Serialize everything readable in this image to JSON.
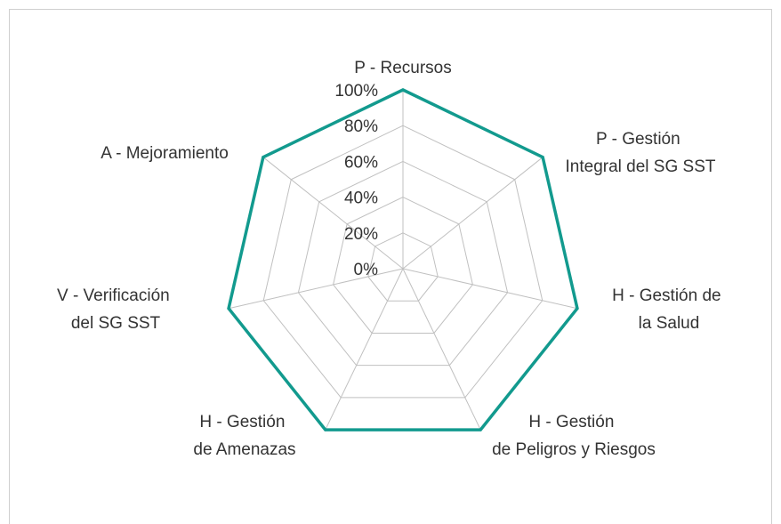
{
  "chart_data": {
    "type": "radar",
    "categories": [
      "P - Recursos",
      "P - Gestión Integral del SG SST",
      "H - Gestión de la Salud",
      "H - Gestión de Peligros y Riesgos",
      "H - Gestión de Amenazas",
      "V - Verificación del SG SST",
      "A - Mejoramiento"
    ],
    "values": [
      100,
      100,
      100,
      100,
      100,
      100,
      100
    ],
    "color": "#129a8e",
    "ylim": [
      0,
      100
    ],
    "yticks": [
      {
        "value": 0,
        "label": "0%"
      },
      {
        "value": 20,
        "label": "20%"
      },
      {
        "value": 40,
        "label": "40%"
      },
      {
        "value": 60,
        "label": "60%"
      },
      {
        "value": 80,
        "label": "80%"
      },
      {
        "value": 100,
        "label": "100%"
      }
    ],
    "grid": true
  }
}
